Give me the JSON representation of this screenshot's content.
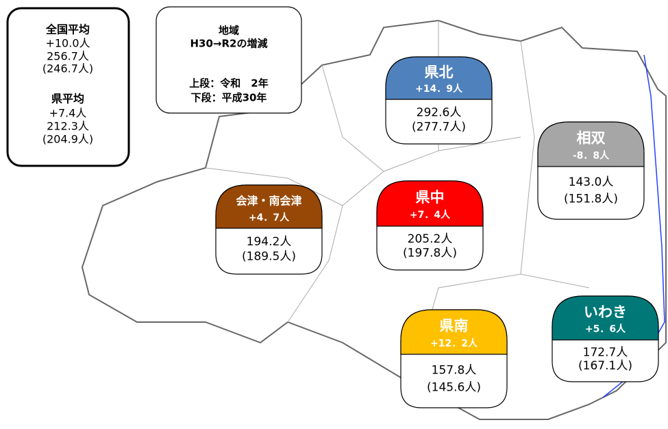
{
  "averages": {
    "national": {
      "title": "全国平均",
      "change": "+10.0人",
      "current": "256.7人",
      "previous": "(246.7人)"
    },
    "prefecture": {
      "title": "県平均",
      "change": "+7.4人",
      "current": "212.3人",
      "previous": "(204.9人)"
    }
  },
  "legend": {
    "title": "地域",
    "subtitle": "H30→R2の増減",
    "upper": "上段：令和　2年",
    "lower": "下段：平成30年"
  },
  "regions": [
    {
      "name": "県北",
      "change": "+14．9人",
      "current": "292.6人",
      "previous": "(277.7人)"
    },
    {
      "name": "相双",
      "change": "-8．8人",
      "current": "143.0人",
      "previous": "(151.8人)"
    },
    {
      "name": "会津・南会津",
      "change": "+4．7人",
      "current": "194.2人",
      "previous": "(189.5人)"
    },
    {
      "name": "県中",
      "change": "+7．4人",
      "current": "205.2人",
      "previous": "(197.8人)"
    },
    {
      "name": "県南",
      "change": "+12．2人",
      "current": "157.8人",
      "previous": "(145.6人)"
    },
    {
      "name": "いわき",
      "change": "+5．6人",
      "current": "172.7人",
      "previous": "(167.1人)"
    }
  ]
}
